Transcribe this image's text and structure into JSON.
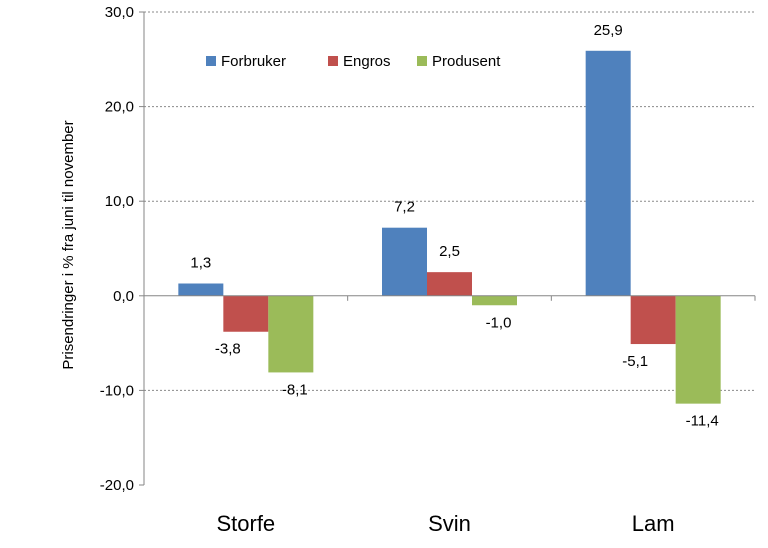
{
  "chart_data": {
    "type": "bar",
    "categories": [
      "Storfe",
      "Svin",
      "Lam"
    ],
    "series": [
      {
        "name": "Forbruker",
        "values": [
          1.3,
          7.2,
          25.9
        ],
        "labels": [
          "1,3",
          "7,2",
          "25,9"
        ],
        "color": "#4F81BD"
      },
      {
        "name": "Engros",
        "values": [
          -3.8,
          2.5,
          -5.1
        ],
        "labels": [
          "-3,8",
          "2,5",
          "-5,1"
        ],
        "color": "#C0504D"
      },
      {
        "name": "Produsent",
        "values": [
          -8.1,
          -1.0,
          -11.4
        ],
        "labels": [
          "-8,1",
          "-1,0",
          "-11,4"
        ],
        "color": "#9BBB59"
      }
    ],
    "ylabel": "Prisendringer i %  fra juni til november",
    "ylim": [
      -20,
      30
    ],
    "yticks": [
      30,
      20,
      10,
      0,
      -10,
      -20
    ],
    "ytick_labels": [
      "30,0",
      "20,0",
      "10,0",
      "0,0",
      "-10,0",
      "-20,0"
    ],
    "grid": true,
    "legend_position": "top"
  }
}
